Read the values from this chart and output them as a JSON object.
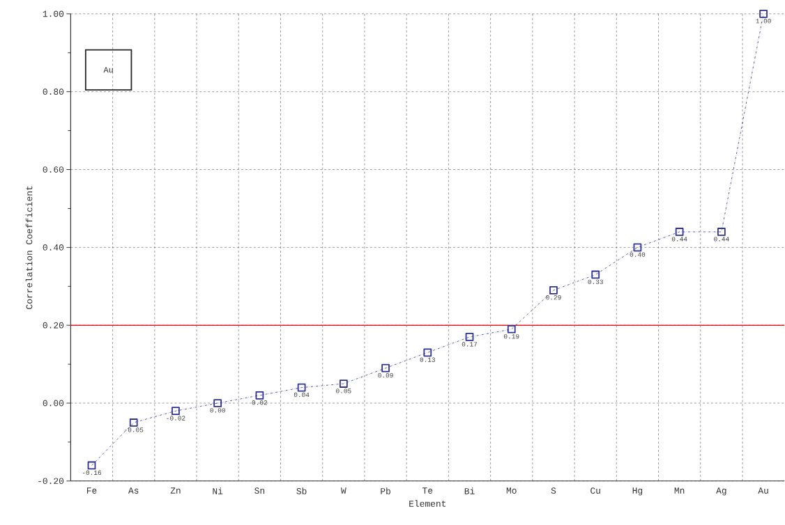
{
  "chart_data": {
    "type": "line",
    "xlabel": "Element",
    "ylabel": "Correlation Coefficient",
    "categories": [
      "Fe",
      "As",
      "Zn",
      "Ni",
      "Sn",
      "Sb",
      "W",
      "Pb",
      "Te",
      "Bi",
      "Mo",
      "S",
      "Cu",
      "Hg",
      "Mn",
      "Ag",
      "Au"
    ],
    "values": [
      -0.16,
      -0.05,
      -0.02,
      0.0,
      0.02,
      0.04,
      0.05,
      0.09,
      0.13,
      0.17,
      0.19,
      0.29,
      0.33,
      0.4,
      0.44,
      0.44,
      1.0
    ],
    "value_labels": [
      "-0.16",
      "-0.05",
      "-0.02",
      "0.00",
      "0.02",
      "0.04",
      "0.05",
      "0.09",
      "0.13",
      "0.17",
      "0.19",
      "0.29",
      "0.33",
      "0.40",
      "0.44",
      "0.44",
      "1.00"
    ],
    "color": "#2e3192",
    "ylim": [
      -0.2,
      1.0
    ],
    "yticks": [
      {
        "value": -0.2,
        "label": "-0.20"
      },
      {
        "value": 0.0,
        "label": "0.00"
      },
      {
        "value": 0.2,
        "label": "0.20"
      },
      {
        "value": 0.4,
        "label": "0.40"
      },
      {
        "value": 0.6,
        "label": "0.60"
      },
      {
        "value": 0.8,
        "label": "0.80"
      },
      {
        "value": 1.0,
        "label": "1.00"
      }
    ],
    "ref_lines": [
      {
        "axis": "y",
        "value": 0.2,
        "color": "#e8202a"
      }
    ],
    "annotations": [
      "Au"
    ],
    "grid": true,
    "marker": "square",
    "line_style": "dashed"
  }
}
